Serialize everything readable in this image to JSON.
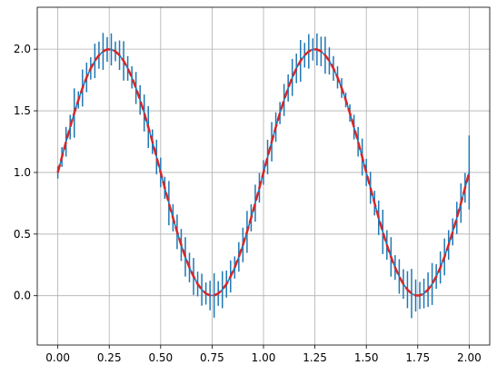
{
  "chart_data": {
    "type": "errorbar",
    "x": [
      0,
      0.02,
      0.04,
      0.06,
      0.08,
      0.1,
      0.12,
      0.14,
      0.16,
      0.18,
      0.2,
      0.22,
      0.24,
      0.26,
      0.28,
      0.3,
      0.32,
      0.34,
      0.36,
      0.38,
      0.4,
      0.42,
      0.44,
      0.46,
      0.48,
      0.5,
      0.52,
      0.54,
      0.56,
      0.58,
      0.6,
      0.62,
      0.64,
      0.66,
      0.68,
      0.7,
      0.72,
      0.74,
      0.76,
      0.78,
      0.8,
      0.82,
      0.84,
      0.86,
      0.88,
      0.9,
      0.92,
      0.94,
      0.96,
      0.98,
      1,
      1.02,
      1.04,
      1.06,
      1.08,
      1.1,
      1.12,
      1.14,
      1.16,
      1.18,
      1.2,
      1.22,
      1.24,
      1.26,
      1.28,
      1.3,
      1.32,
      1.34,
      1.36,
      1.38,
      1.4,
      1.42,
      1.44,
      1.46,
      1.48,
      1.5,
      1.52,
      1.54,
      1.56,
      1.58,
      1.6,
      1.62,
      1.64,
      1.66,
      1.68,
      1.7,
      1.72,
      1.74,
      1.76,
      1.78,
      1.8,
      1.82,
      1.84,
      1.86,
      1.88,
      1.9,
      1.92,
      1.94,
      1.96,
      1.98,
      2
    ],
    "series": [
      {
        "color": "#1f77b4",
        "style": "solid",
        "values": [
          1,
          1.125,
          1.249,
          1.368,
          1.482,
          1.588,
          1.685,
          1.771,
          1.844,
          1.905,
          1.951,
          1.982,
          1.998,
          1.998,
          1.982,
          1.951,
          1.905,
          1.844,
          1.771,
          1.685,
          1.588,
          1.482,
          1.368,
          1.249,
          1.125,
          1,
          0.875,
          0.751,
          0.632,
          0.518,
          0.412,
          0.315,
          0.229,
          0.156,
          0.095,
          0.049,
          0.018,
          0.002,
          0.002,
          0.018,
          0.049,
          0.095,
          0.156,
          0.229,
          0.315,
          0.412,
          0.518,
          0.632,
          0.751,
          0.875,
          1,
          1.125,
          1.249,
          1.368,
          1.482,
          1.588,
          1.685,
          1.771,
          1.844,
          1.905,
          1.951,
          1.982,
          1.998,
          1.998,
          1.982,
          1.951,
          1.905,
          1.844,
          1.771,
          1.685,
          1.588,
          1.482,
          1.368,
          1.249,
          1.125,
          1,
          0.875,
          0.751,
          0.632,
          0.518,
          0.412,
          0.315,
          0.229,
          0.156,
          0.095,
          0.049,
          0.018,
          0.002,
          0.002,
          0.018,
          0.049,
          0.095,
          0.156,
          0.229,
          0.315,
          0.412,
          0.518,
          0.632,
          0.751,
          0.875,
          1
        ],
        "errors": [
          0.05,
          0.08,
          0.12,
          0.1,
          0.2,
          0.07,
          0.15,
          0.12,
          0.09,
          0.14,
          0.11,
          0.15,
          0.1,
          0.13,
          0.08,
          0.12,
          0.16,
          0.1,
          0.09,
          0.13,
          0.12,
          0.15,
          0.17,
          0.1,
          0.14,
          0.12,
          0.09,
          0.18,
          0.11,
          0.14,
          0.13,
          0.16,
          0.12,
          0.15,
          0.1,
          0.13,
          0.09,
          0.12,
          0.18,
          0.1,
          0.15,
          0.11,
          0.13,
          0.09,
          0.12,
          0.14,
          0.17,
          0.11,
          0.15,
          0.12,
          0.1,
          0.14,
          0.16,
          0.12,
          0.09,
          0.13,
          0.11,
          0.15,
          0.12,
          0.17,
          0.1,
          0.14,
          0.09,
          0.13,
          0.12,
          0.15,
          0.11,
          0.1,
          0.09,
          0.08,
          0.06,
          0.07,
          0.1,
          0.12,
          0.15,
          0.11,
          0.13,
          0.1,
          0.14,
          0.18,
          0.12,
          0.16,
          0.1,
          0.14,
          0.12,
          0.15,
          0.2,
          0.13,
          0.11,
          0.12,
          0.14,
          0.17,
          0.1,
          0.13,
          0.15,
          0.12,
          0.11,
          0.13,
          0.16,
          0.12,
          0.3
        ]
      },
      {
        "color": "#d62728",
        "style": "dashed",
        "values": [
          1,
          1.125,
          1.249,
          1.368,
          1.482,
          1.588,
          1.685,
          1.771,
          1.844,
          1.905,
          1.951,
          1.982,
          1.998,
          1.998,
          1.982,
          1.951,
          1.905,
          1.844,
          1.771,
          1.685,
          1.588,
          1.482,
          1.368,
          1.249,
          1.125,
          1,
          0.875,
          0.751,
          0.632,
          0.518,
          0.412,
          0.315,
          0.229,
          0.156,
          0.095,
          0.049,
          0.018,
          0.002,
          0.002,
          0.018,
          0.049,
          0.095,
          0.156,
          0.229,
          0.315,
          0.412,
          0.518,
          0.632,
          0.751,
          0.875,
          1,
          1.125,
          1.249,
          1.368,
          1.482,
          1.588,
          1.685,
          1.771,
          1.844,
          1.905,
          1.951,
          1.982,
          1.998,
          1.998,
          1.982,
          1.951,
          1.905,
          1.844,
          1.771,
          1.685,
          1.588,
          1.482,
          1.368,
          1.249,
          1.125,
          1,
          0.875,
          0.751,
          0.632,
          0.518,
          0.412,
          0.315,
          0.229,
          0.156,
          0.095,
          0.049,
          0.018,
          0.002,
          0.002,
          0.018,
          0.049,
          0.095,
          0.156,
          0.229,
          0.315,
          0.412,
          0.518,
          0.632,
          0.751,
          0.875,
          1
        ]
      }
    ],
    "xlim": [
      -0.1,
      2.1
    ],
    "xticks": [
      {
        "value": 0,
        "label": "0.00"
      },
      {
        "value": 0.25,
        "label": "0.25"
      },
      {
        "value": 0.5,
        "label": "0.50"
      },
      {
        "value": 0.75,
        "label": "0.75"
      },
      {
        "value": 1,
        "label": "1.00"
      },
      {
        "value": 1.25,
        "label": "1.25"
      },
      {
        "value": 1.5,
        "label": "1.50"
      },
      {
        "value": 1.75,
        "label": "1.75"
      },
      {
        "value": 2,
        "label": "2.00"
      }
    ],
    "ylim": [
      -0.4,
      2.34
    ],
    "yticks": [
      {
        "value": 0,
        "label": "0.0"
      },
      {
        "value": 0.5,
        "label": "0.5"
      },
      {
        "value": 1,
        "label": "1.0"
      },
      {
        "value": 1.5,
        "label": "1.5"
      },
      {
        "value": 2,
        "label": "2.0"
      }
    ],
    "grid": true
  }
}
